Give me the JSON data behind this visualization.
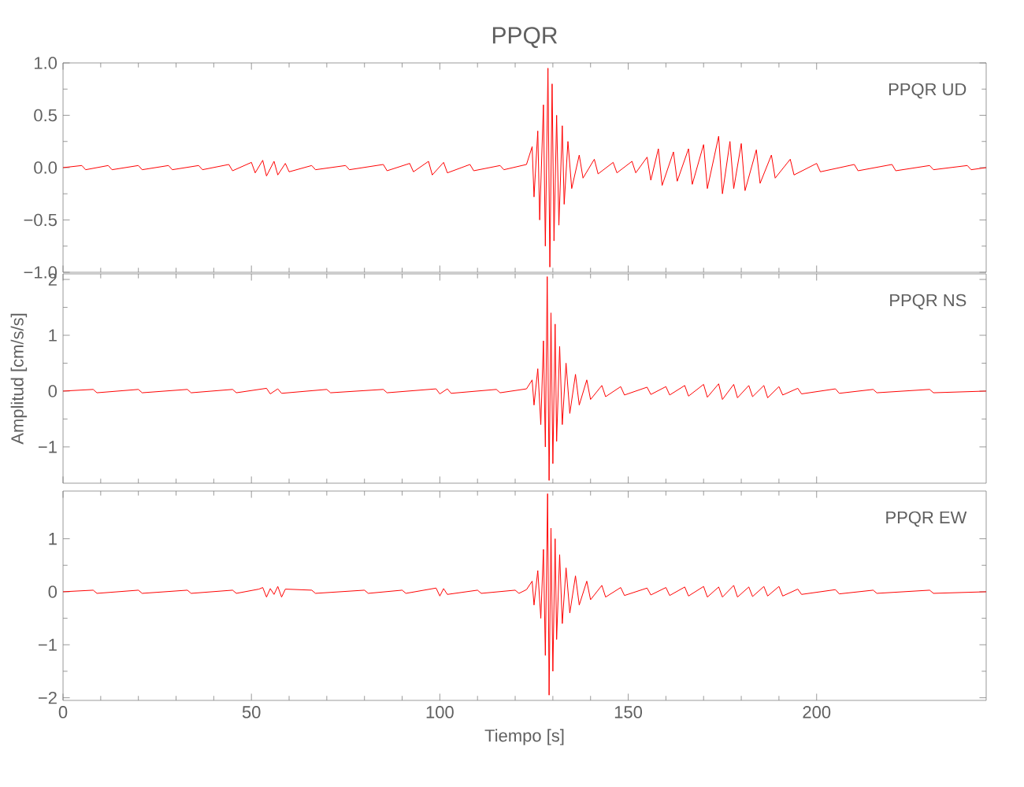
{
  "chart_data": [
    {
      "type": "line",
      "title": "PPQR",
      "annotations": [
        "PPQR   UD"
      ],
      "tick_labels": "y",
      "x": [
        0,
        5,
        6,
        12,
        13,
        20,
        21,
        28,
        29,
        36,
        37,
        44,
        45,
        50,
        51,
        53,
        54,
        56,
        57,
        59,
        60,
        66,
        67,
        75,
        76,
        85,
        86,
        92,
        93,
        97,
        98,
        101,
        102,
        108,
        109,
        116,
        117,
        123,
        124.5,
        125,
        126,
        126.5,
        127.5,
        128,
        128.7,
        129.2,
        129.8,
        130.3,
        131,
        131.6,
        132.5,
        133,
        134,
        135,
        137,
        138,
        141,
        142,
        146,
        147,
        151,
        152,
        155,
        156,
        158,
        159,
        162,
        163,
        166,
        167,
        170,
        171,
        174,
        175,
        177,
        178,
        180,
        181,
        184,
        185,
        188,
        189,
        193,
        194,
        200,
        201,
        210,
        211,
        220,
        221,
        230,
        231,
        240,
        241,
        245
      ],
      "series": [
        {
          "color": "#ff0000",
          "values": [
            0,
            0.02,
            -0.02,
            0.02,
            -0.02,
            0.02,
            -0.02,
            0.02,
            -0.02,
            0.02,
            -0.02,
            0.03,
            -0.03,
            0.05,
            -0.05,
            0.07,
            -0.08,
            0.06,
            -0.07,
            0.04,
            -0.04,
            0.02,
            -0.02,
            0.02,
            -0.02,
            0.03,
            -0.03,
            0.04,
            -0.04,
            0.06,
            -0.07,
            0.05,
            -0.05,
            0.03,
            -0.03,
            0.02,
            -0.02,
            0.03,
            0.2,
            -0.28,
            0.35,
            -0.5,
            0.6,
            -0.75,
            0.95,
            -0.95,
            0.8,
            -0.7,
            0.5,
            -0.55,
            0.4,
            -0.35,
            0.25,
            -0.2,
            0.12,
            -0.1,
            0.08,
            -0.06,
            0.05,
            -0.05,
            0.06,
            -0.05,
            0.1,
            -0.12,
            0.18,
            -0.17,
            0.15,
            -0.13,
            0.18,
            -0.16,
            0.22,
            -0.2,
            0.3,
            -0.25,
            0.25,
            -0.2,
            0.23,
            -0.22,
            0.17,
            -0.15,
            0.12,
            -0.1,
            0.08,
            -0.07,
            0.04,
            -0.04,
            0.03,
            -0.03,
            0.03,
            -0.03,
            0.02,
            -0.02,
            0.02,
            -0.02,
            0
          ]
        }
      ],
      "xlim": [
        0,
        245
      ],
      "xticks": [
        0,
        50,
        100,
        150,
        200
      ],
      "ylim": [
        -1,
        1
      ],
      "yticks": [
        {
          "value": -1,
          "label": "−1.0"
        },
        {
          "value": -0.5,
          "label": "−0.5"
        },
        {
          "value": 0,
          "label": "0.0"
        },
        {
          "value": 0.5,
          "label": "0.5"
        },
        {
          "value": 1,
          "label": "1.0"
        }
      ]
    },
    {
      "type": "line",
      "ylabel": "Amplitud [cm/s/s]",
      "annotations": [
        "PPQR   NS"
      ],
      "tick_labels": "y",
      "x": [
        0,
        8,
        9,
        20,
        21,
        33,
        34,
        45,
        46,
        54,
        55,
        57,
        58,
        70,
        71,
        85,
        86,
        99,
        100,
        102,
        103,
        115,
        116,
        123,
        124.5,
        125,
        126,
        126.8,
        127.5,
        128,
        128.5,
        129,
        129.5,
        130,
        130.6,
        131,
        131.8,
        132.5,
        133.5,
        134.5,
        136,
        137,
        139,
        140,
        143,
        144,
        148,
        149,
        155,
        156,
        160,
        161,
        165,
        166,
        170,
        171,
        174,
        175,
        178,
        179,
        182,
        183,
        186,
        187,
        190,
        191,
        195,
        196,
        205,
        206,
        215,
        216,
        230,
        231,
        245
      ],
      "series": [
        {
          "color": "#ff0000",
          "values": [
            0,
            0.03,
            -0.03,
            0.03,
            -0.03,
            0.03,
            -0.03,
            0.03,
            -0.03,
            0.05,
            -0.05,
            0.04,
            -0.04,
            0.03,
            -0.03,
            0.03,
            -0.03,
            0.04,
            -0.05,
            0.04,
            -0.04,
            0.03,
            -0.03,
            0.04,
            0.2,
            -0.25,
            0.4,
            -0.6,
            0.9,
            -1.0,
            2.05,
            -1.6,
            1.4,
            -1.3,
            1.2,
            -0.9,
            0.8,
            -0.6,
            0.5,
            -0.4,
            0.3,
            -0.25,
            0.2,
            -0.15,
            0.1,
            -0.1,
            0.08,
            -0.07,
            0.07,
            -0.06,
            0.08,
            -0.07,
            0.1,
            -0.09,
            0.12,
            -0.11,
            0.13,
            -0.15,
            0.12,
            -0.12,
            0.1,
            -0.1,
            0.1,
            -0.12,
            0.08,
            -0.07,
            0.05,
            -0.05,
            0.04,
            -0.04,
            0.03,
            -0.03,
            0.03,
            -0.03,
            0
          ]
        }
      ],
      "xlim": [
        0,
        245
      ],
      "xticks": [
        0,
        50,
        100,
        150,
        200
      ],
      "ylim": [
        -1.65,
        2.1
      ],
      "yticks": [
        {
          "value": -1,
          "label": "−1"
        },
        0,
        1,
        2
      ]
    },
    {
      "type": "line",
      "xlabel": "Tiempo [s]",
      "annotations": [
        "PPQR   EW"
      ],
      "x": [
        0,
        8,
        9,
        20,
        21,
        33,
        34,
        45,
        46,
        52,
        53,
        54,
        55,
        56,
        57,
        58,
        59,
        66,
        67,
        80,
        81,
        90,
        91,
        99,
        100,
        101,
        102,
        110,
        111,
        120,
        121,
        123,
        124.5,
        125,
        126,
        126.8,
        127.5,
        128,
        128.6,
        129,
        129.5,
        130,
        130.6,
        131,
        131.8,
        132.5,
        133.5,
        134.5,
        136,
        137,
        139,
        140,
        143,
        144,
        148,
        149,
        155,
        156,
        160,
        161,
        165,
        166,
        170,
        171,
        174,
        175,
        178,
        179,
        182,
        183,
        186,
        187,
        190,
        191,
        195,
        196,
        205,
        206,
        215,
        216,
        230,
        231,
        245
      ],
      "series": [
        {
          "color": "#ff0000",
          "values": [
            0,
            0.03,
            -0.03,
            0.03,
            -0.03,
            0.03,
            -0.03,
            0.03,
            -0.03,
            0.05,
            0.08,
            -0.1,
            0.06,
            -0.05,
            0.1,
            -0.1,
            0.05,
            0.03,
            -0.03,
            0.03,
            -0.03,
            0.03,
            -0.03,
            0.07,
            -0.08,
            0.06,
            -0.05,
            0.03,
            -0.03,
            0.03,
            -0.03,
            0.04,
            0.2,
            -0.25,
            0.4,
            -0.5,
            0.8,
            -1.2,
            1.85,
            -1.95,
            1.2,
            -1.5,
            1.0,
            -0.9,
            0.7,
            -0.6,
            0.45,
            -0.4,
            0.3,
            -0.25,
            0.2,
            -0.15,
            0.12,
            -0.1,
            0.08,
            -0.07,
            0.07,
            -0.06,
            0.08,
            -0.07,
            0.09,
            -0.08,
            0.1,
            -0.1,
            0.09,
            -0.1,
            0.12,
            -0.1,
            0.09,
            -0.09,
            0.1,
            -0.08,
            0.1,
            -0.08,
            0.05,
            -0.05,
            0.04,
            -0.04,
            0.03,
            -0.03,
            0.03,
            -0.03,
            0
          ]
        }
      ],
      "xlim": [
        0,
        245
      ],
      "xticks": [
        0,
        50,
        100,
        150,
        200
      ],
      "ylim": [
        -2.05,
        1.9
      ],
      "yticks": [
        {
          "value": -2,
          "label": "−2"
        },
        {
          "value": -1,
          "label": "−1"
        },
        0,
        1
      ]
    }
  ]
}
